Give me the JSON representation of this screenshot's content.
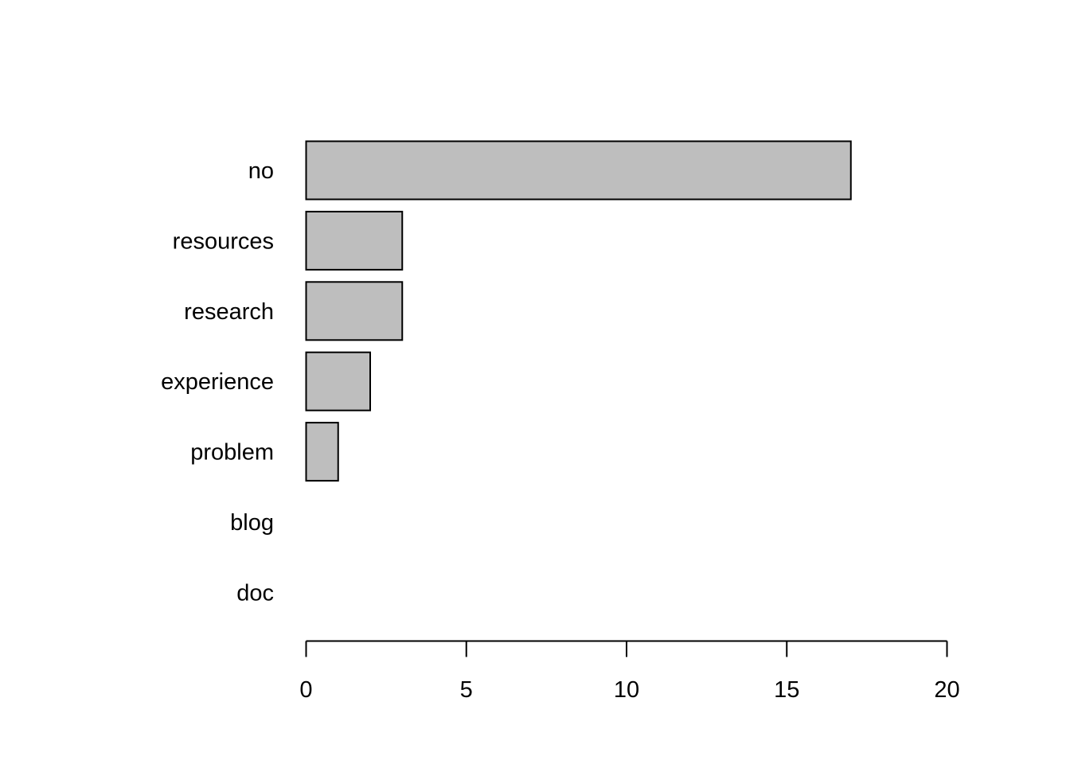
{
  "chart_data": {
    "type": "bar",
    "orientation": "horizontal",
    "categories": [
      "no",
      "resources",
      "research",
      "experience",
      "problem",
      "blog",
      "doc"
    ],
    "values": [
      17,
      3,
      3,
      2,
      1,
      0,
      0
    ],
    "title": "",
    "xlabel": "",
    "ylabel": "",
    "xlim": [
      0,
      20
    ],
    "x_ticks": [
      0,
      5,
      10,
      15,
      20
    ],
    "x_tick_labels": [
      "0",
      "5",
      "10",
      "15",
      "20"
    ],
    "grid": false,
    "bar_color": "#bebebe",
    "edge_color": "#000000"
  }
}
